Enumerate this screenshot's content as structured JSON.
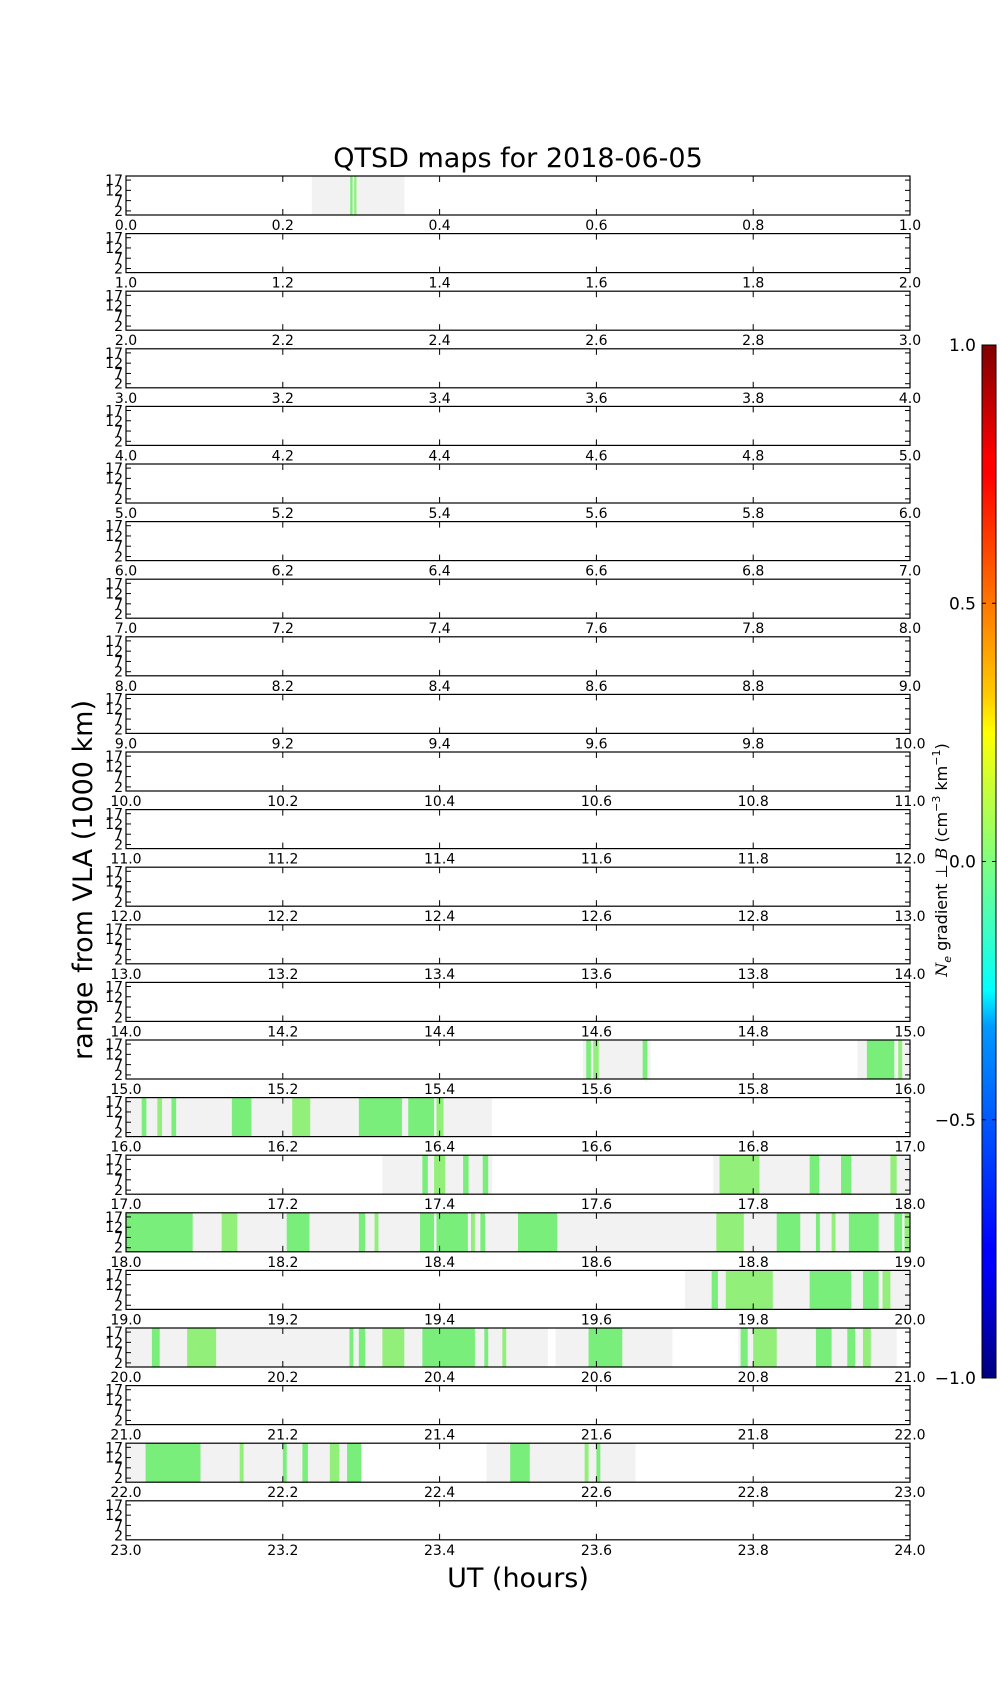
{
  "chart_data": {
    "type": "heatmap",
    "title": "QTSD maps for 2018-06-05",
    "xlabel": "UT (hours)",
    "ylabel": "range from VLA (1000 km)",
    "ytick_labels": [
      "17",
      "12",
      "7",
      "2"
    ],
    "ylim": [
      0,
      19
    ],
    "colorbar": {
      "label_prefix": "N",
      "label_sub": "e",
      "label_main": "gradient ⊥",
      "label_vec": "B",
      "label_units": "(cm",
      "label_exp1": "−3",
      "label_mid": "km",
      "label_exp2": "−1",
      "label_end": ")",
      "ticks": [
        "1.0",
        "0.5",
        "0.0",
        "−0.5",
        "−1.0"
      ],
      "range": [
        -1.0,
        1.0
      ],
      "colormap": "jet"
    },
    "colors": {
      "no_data": "#f2f2f2",
      "detection": "#7aee7a",
      "detection_alt": "#92f07a"
    },
    "panels": [
      {
        "start": 0,
        "tick_labels": [
          "0.0",
          "0.2",
          "0.4",
          "0.6",
          "0.8",
          "1.0"
        ],
        "coverage": [
          [
            0.237,
            0.355
          ]
        ],
        "detections": [
          [
            0.286,
            0.289
          ],
          [
            0.291,
            0.294
          ]
        ]
      },
      {
        "start": 1,
        "tick_labels": [
          "1.0",
          "1.2",
          "1.4",
          "1.6",
          "1.8",
          "2.0"
        ],
        "coverage": [],
        "detections": []
      },
      {
        "start": 2,
        "tick_labels": [
          "2.0",
          "2.2",
          "2.4",
          "2.6",
          "2.8",
          "3.0"
        ],
        "coverage": [],
        "detections": []
      },
      {
        "start": 3,
        "tick_labels": [
          "3.0",
          "3.2",
          "3.4",
          "3.6",
          "3.8",
          "4.0"
        ],
        "coverage": [],
        "detections": []
      },
      {
        "start": 4,
        "tick_labels": [
          "4.0",
          "4.2",
          "4.4",
          "4.6",
          "4.8",
          "5.0"
        ],
        "coverage": [],
        "detections": []
      },
      {
        "start": 5,
        "tick_labels": [
          "5.0",
          "5.2",
          "5.4",
          "5.6",
          "5.8",
          "6.0"
        ],
        "coverage": [],
        "detections": []
      },
      {
        "start": 6,
        "tick_labels": [
          "6.0",
          "6.2",
          "6.4",
          "6.6",
          "6.8",
          "7.0"
        ],
        "coverage": [],
        "detections": []
      },
      {
        "start": 7,
        "tick_labels": [
          "7.0",
          "7.2",
          "7.4",
          "7.6",
          "7.8",
          "8.0"
        ],
        "coverage": [],
        "detections": []
      },
      {
        "start": 8,
        "tick_labels": [
          "8.0",
          "8.2",
          "8.4",
          "8.6",
          "8.8",
          "9.0"
        ],
        "coverage": [],
        "detections": []
      },
      {
        "start": 9,
        "tick_labels": [
          "9.0",
          "9.2",
          "9.4",
          "9.6",
          "9.8",
          "10.0"
        ],
        "coverage": [],
        "detections": []
      },
      {
        "start": 10,
        "tick_labels": [
          "10.0",
          "10.2",
          "10.4",
          "10.6",
          "10.8",
          "11.0"
        ],
        "coverage": [],
        "detections": []
      },
      {
        "start": 11,
        "tick_labels": [
          "11.0",
          "11.2",
          "11.4",
          "11.6",
          "11.8",
          "12.0"
        ],
        "coverage": [],
        "detections": []
      },
      {
        "start": 12,
        "tick_labels": [
          "12.0",
          "12.2",
          "12.4",
          "12.6",
          "12.8",
          "13.0"
        ],
        "coverage": [],
        "detections": []
      },
      {
        "start": 13,
        "tick_labels": [
          "13.0",
          "13.2",
          "13.4",
          "13.6",
          "13.8",
          "14.0"
        ],
        "coverage": [],
        "detections": []
      },
      {
        "start": 14,
        "tick_labels": [
          "14.0",
          "14.2",
          "14.4",
          "14.6",
          "14.8",
          "15.0"
        ],
        "coverage": [],
        "detections": []
      },
      {
        "start": 15,
        "tick_labels": [
          "15.0",
          "15.2",
          "15.4",
          "15.6",
          "15.8",
          "16.0"
        ],
        "coverage": [
          [
            15.583,
            15.669
          ],
          [
            15.933,
            16.0
          ]
        ],
        "detections": [
          [
            15.587,
            15.593
          ],
          [
            15.596,
            15.603
          ],
          [
            15.659,
            15.665
          ],
          [
            15.945,
            15.98
          ],
          [
            15.985,
            15.99
          ]
        ]
      },
      {
        "start": 16,
        "tick_labels": [
          "16.0",
          "16.2",
          "16.4",
          "16.6",
          "16.8",
          "17.0"
        ],
        "coverage": [
          [
            16.0,
            16.467
          ]
        ],
        "detections": [
          [
            16.02,
            16.026
          ],
          [
            16.04,
            16.046
          ],
          [
            16.058,
            16.064
          ],
          [
            16.135,
            16.16
          ],
          [
            16.212,
            16.235
          ],
          [
            16.297,
            16.352
          ],
          [
            16.36,
            16.393
          ],
          [
            16.396,
            16.405
          ]
        ]
      },
      {
        "start": 17,
        "tick_labels": [
          "17.0",
          "17.2",
          "17.4",
          "17.6",
          "17.8",
          "18.0"
        ],
        "coverage": [
          [
            17.327,
            17.467
          ],
          [
            17.749,
            18.0
          ]
        ],
        "detections": [
          [
            17.378,
            17.385
          ],
          [
            17.393,
            17.407
          ],
          [
            17.43,
            17.437
          ],
          [
            17.455,
            17.462
          ],
          [
            17.757,
            17.808
          ],
          [
            17.872,
            17.884
          ],
          [
            17.912,
            17.925
          ],
          [
            17.975,
            17.983
          ]
        ]
      },
      {
        "start": 18,
        "tick_labels": [
          "18.0",
          "18.2",
          "18.4",
          "18.6",
          "18.8",
          "19.0"
        ],
        "coverage": [
          [
            18.0,
            19.0
          ]
        ],
        "detections": [
          [
            18.0,
            18.085
          ],
          [
            18.122,
            18.142
          ],
          [
            18.205,
            18.234
          ],
          [
            18.297,
            18.305
          ],
          [
            18.317,
            18.322
          ],
          [
            18.375,
            18.393
          ],
          [
            18.396,
            18.436
          ],
          [
            18.44,
            18.445
          ],
          [
            18.452,
            18.458
          ],
          [
            18.5,
            18.55
          ],
          [
            18.753,
            18.788
          ],
          [
            18.83,
            18.86
          ],
          [
            18.88,
            18.885
          ],
          [
            18.9,
            18.905
          ],
          [
            18.922,
            18.96
          ],
          [
            18.98,
            18.99
          ],
          [
            18.993,
            19.0
          ]
        ]
      },
      {
        "start": 19,
        "tick_labels": [
          "19.0",
          "19.2",
          "19.4",
          "19.6",
          "19.8",
          "20.0"
        ],
        "coverage": [
          [
            19.713,
            20.0
          ]
        ],
        "detections": [
          [
            19.747,
            19.755
          ],
          [
            19.765,
            19.825
          ],
          [
            19.872,
            19.925
          ],
          [
            19.94,
            19.96
          ],
          [
            19.965,
            19.975
          ]
        ]
      },
      {
        "start": 20,
        "tick_labels": [
          "20.0",
          "20.2",
          "20.4",
          "20.6",
          "20.8",
          "21.0"
        ],
        "coverage": [
          [
            20.0,
            20.538
          ],
          [
            20.548,
            20.697
          ],
          [
            20.781,
            20.983
          ]
        ],
        "detections": [
          [
            20.033,
            20.043
          ],
          [
            20.078,
            20.115
          ],
          [
            20.285,
            20.29
          ],
          [
            20.297,
            20.305
          ],
          [
            20.327,
            20.355
          ],
          [
            20.378,
            20.445
          ],
          [
            20.457,
            20.462
          ],
          [
            20.48,
            20.485
          ],
          [
            20.59,
            20.633
          ],
          [
            20.784,
            20.793
          ],
          [
            20.8,
            20.83
          ],
          [
            20.88,
            20.9
          ],
          [
            20.92,
            20.93
          ],
          [
            20.94,
            20.95
          ]
        ]
      },
      {
        "start": 21,
        "tick_labels": [
          "21.0",
          "21.2",
          "21.4",
          "21.6",
          "21.8",
          "22.0"
        ],
        "coverage": [],
        "detections": []
      },
      {
        "start": 22,
        "tick_labels": [
          "22.0",
          "22.2",
          "22.4",
          "22.6",
          "22.8",
          "23.0"
        ],
        "coverage": [
          [
            22.0,
            22.3
          ],
          [
            22.46,
            22.65
          ]
        ],
        "detections": [
          [
            22.025,
            22.095
          ],
          [
            22.145,
            22.15
          ],
          [
            22.2,
            22.205
          ],
          [
            22.225,
            22.232
          ],
          [
            22.26,
            22.272
          ],
          [
            22.282,
            22.3
          ],
          [
            22.49,
            22.515
          ],
          [
            22.585,
            22.59
          ],
          [
            22.6,
            22.605
          ]
        ]
      },
      {
        "start": 23,
        "tick_labels": [
          "23.0",
          "23.2",
          "23.4",
          "23.6",
          "23.8",
          "24.0"
        ],
        "coverage": [],
        "detections": []
      }
    ]
  }
}
